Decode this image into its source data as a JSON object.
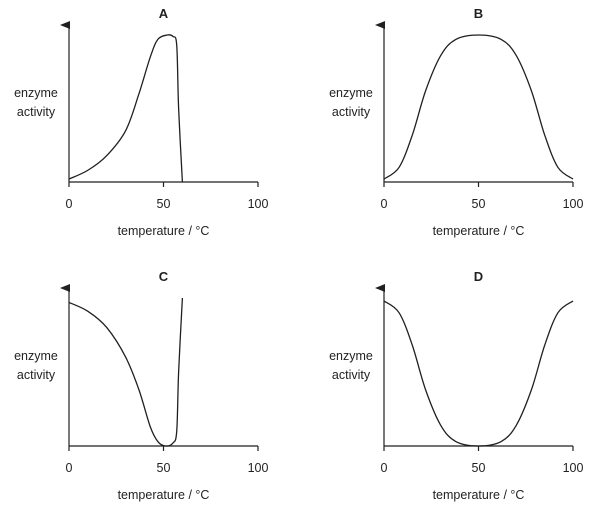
{
  "chart_data": [
    {
      "type": "line",
      "title": "A",
      "xlabel": "temperature / °C",
      "ylabel_lines": [
        "enzyme",
        "activity"
      ],
      "xlim": [
        0,
        100
      ],
      "ylim": [
        0,
        1
      ],
      "xticks": [
        "0",
        "50",
        "100"
      ],
      "grid": false,
      "series": [
        {
          "points": [
            [
              0,
              0.02
            ],
            [
              10,
              0.08
            ],
            [
              20,
              0.18
            ],
            [
              30,
              0.35
            ],
            [
              37,
              0.6
            ],
            [
              43,
              0.85
            ],
            [
              47,
              0.97
            ],
            [
              52,
              1.0
            ],
            [
              55,
              0.99
            ],
            [
              57,
              0.93
            ],
            [
              58,
              0.5
            ],
            [
              60,
              0.0
            ]
          ]
        }
      ]
    },
    {
      "type": "line",
      "title": "B",
      "xlabel": "temperature / °C",
      "ylabel_lines": [
        "enzyme",
        "activity"
      ],
      "xlim": [
        0,
        100
      ],
      "ylim": [
        0,
        1
      ],
      "xticks": [
        "0",
        "50",
        "100"
      ],
      "grid": false,
      "series": [
        {
          "points": [
            [
              0,
              0.02
            ],
            [
              8,
              0.1
            ],
            [
              15,
              0.32
            ],
            [
              22,
              0.62
            ],
            [
              30,
              0.86
            ],
            [
              38,
              0.97
            ],
            [
              50,
              1.0
            ],
            [
              62,
              0.97
            ],
            [
              70,
              0.86
            ],
            [
              78,
              0.62
            ],
            [
              85,
              0.32
            ],
            [
              92,
              0.1
            ],
            [
              100,
              0.02
            ]
          ]
        }
      ]
    },
    {
      "type": "line",
      "title": "C",
      "xlabel": "temperature / °C",
      "ylabel_lines": [
        "enzyme",
        "activity"
      ],
      "xlim": [
        0,
        100
      ],
      "ylim": [
        0,
        1
      ],
      "xticks": [
        "0",
        "50",
        "100"
      ],
      "grid": false,
      "series": [
        {
          "points": [
            [
              0,
              0.97
            ],
            [
              10,
              0.91
            ],
            [
              20,
              0.8
            ],
            [
              30,
              0.6
            ],
            [
              37,
              0.38
            ],
            [
              43,
              0.13
            ],
            [
              47,
              0.03
            ],
            [
              51,
              0.0
            ],
            [
              55,
              0.02
            ],
            [
              57,
              0.1
            ],
            [
              58,
              0.5
            ],
            [
              60,
              1.0
            ]
          ]
        }
      ]
    },
    {
      "type": "line",
      "title": "D",
      "xlabel": "temperature / °C",
      "ylabel_lines": [
        "enzyme",
        "activity"
      ],
      "xlim": [
        0,
        100
      ],
      "ylim": [
        0,
        1
      ],
      "xticks": [
        "0",
        "50",
        "100"
      ],
      "grid": false,
      "series": [
        {
          "points": [
            [
              0,
              0.98
            ],
            [
              8,
              0.9
            ],
            [
              15,
              0.68
            ],
            [
              22,
              0.38
            ],
            [
              30,
              0.14
            ],
            [
              38,
              0.03
            ],
            [
              50,
              0.0
            ],
            [
              62,
              0.03
            ],
            [
              70,
              0.14
            ],
            [
              78,
              0.38
            ],
            [
              85,
              0.68
            ],
            [
              92,
              0.9
            ],
            [
              100,
              0.98
            ]
          ]
        }
      ]
    }
  ]
}
